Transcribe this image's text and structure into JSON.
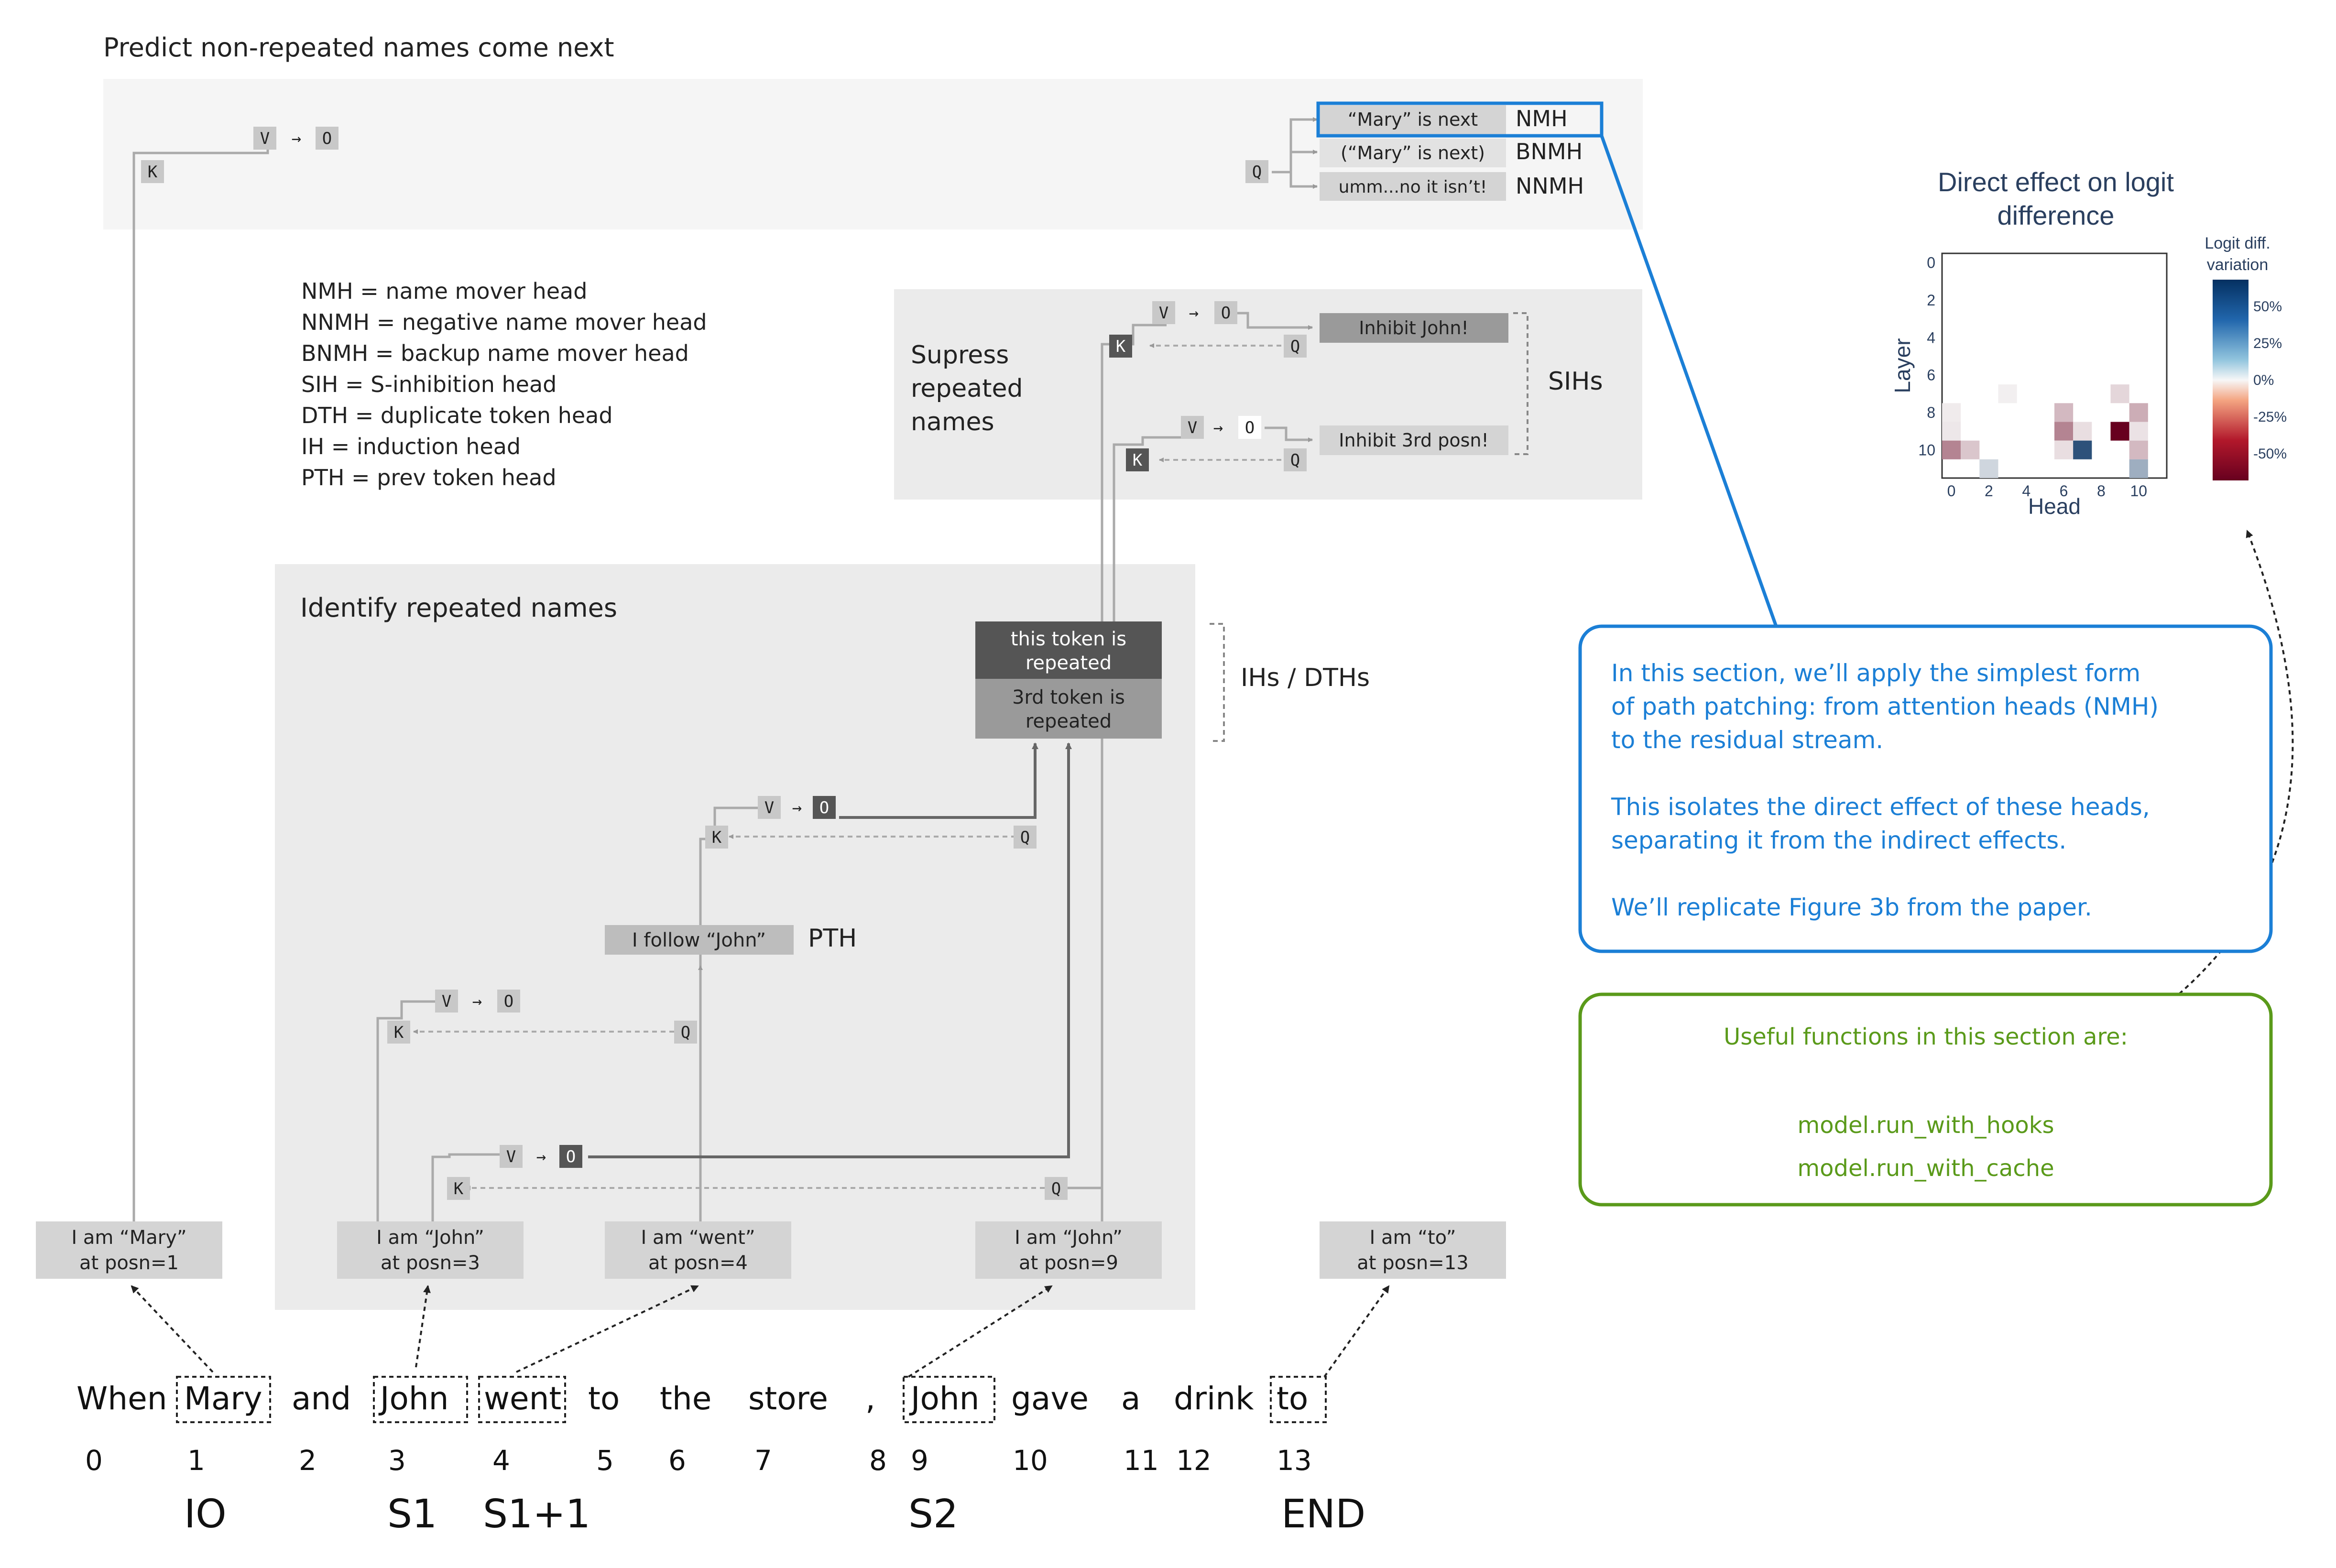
{
  "titles": {
    "predict": "Predict non-repeated names come next",
    "suppress": [
      "Supress",
      "repeated",
      "names"
    ],
    "identify": "Identify repeated names",
    "ih_dth": "IHs / DTHs",
    "sihs": "SIHs",
    "pth": "PTH"
  },
  "legend": [
    "NMH = name mover head",
    "NNMH = negative name mover head",
    "BNMH = backup name mover head",
    "SIH = S-inhibition head",
    "DTH = duplicate token head",
    "IH = induction head",
    "PTH = prev token head"
  ],
  "head_labels": {
    "k": "K",
    "q": "Q",
    "v": "V",
    "o": "O",
    "arrow": "→"
  },
  "outputs": [
    {
      "text": "“Mary” is next",
      "role": "NMH"
    },
    {
      "text": "(“Mary” is next)",
      "role": "BNMH"
    },
    {
      "text": "umm...no it isn’t!",
      "role": "NNMH"
    }
  ],
  "sih_outputs": [
    "Inhibit John!",
    "Inhibit 3rd posn!"
  ],
  "repeat_boxes": {
    "top": [
      "this token is",
      "repeated"
    ],
    "bottom": [
      "3rd token is",
      "repeated"
    ]
  },
  "pth_box": "I follow “John”",
  "token_boxes": [
    [
      "I am “Mary”",
      "at posn=1"
    ],
    [
      "I am “John”",
      "at posn=3"
    ],
    [
      "I am “went”",
      "at posn=4"
    ],
    [
      "I am “John”",
      "at posn=9"
    ],
    [
      "I am “to”",
      "at posn=13"
    ]
  ],
  "sentence": {
    "words": [
      "When",
      "Mary",
      "and",
      "John",
      "went",
      "to",
      "the",
      "store",
      ",",
      "John",
      "gave",
      "a",
      "drink",
      "to"
    ],
    "positions": [
      "0",
      "1",
      "2",
      "3",
      "4",
      "5",
      "6",
      "7",
      "8",
      "9",
      "10",
      "11",
      "12",
      "13"
    ],
    "roles": [
      "IO",
      "S1",
      "S1+1",
      "S2",
      "END"
    ]
  },
  "info_box": {
    "lines": [
      "In this section, we’ll apply the simplest form",
      "of path patching: from attention heads (NMH)",
      "to the residual stream.",
      "",
      "This isolates the direct effect of these heads,",
      "separating it from the indirect effects.",
      "",
      "We’ll replicate Figure 3b from the paper."
    ],
    "color": "#1b7fd6"
  },
  "functions_box": {
    "title": "Useful functions in this section are:",
    "items": [
      "model.run_with_hooks",
      "model.run_with_cache"
    ],
    "color": "#5a9a1a"
  },
  "chart_data": {
    "type": "heatmap",
    "title": [
      "Direct effect on logit",
      "difference"
    ],
    "xlabel": "Head",
    "ylabel": "Layer",
    "xticks": [
      "0",
      "2",
      "4",
      "6",
      "8",
      "10"
    ],
    "yticks": [
      "0",
      "2",
      "4",
      "6",
      "8",
      "10"
    ],
    "xlim": [
      0,
      11
    ],
    "ylim": [
      0,
      11
    ],
    "colorbar_title": [
      "Logit diff.",
      "variation"
    ],
    "colorbar_ticks": [
      "50%",
      "25%",
      "0%",
      "-25%",
      "-50%"
    ],
    "colorscale": {
      "min": -0.6,
      "max": 0.6,
      "neg": "#67001f",
      "zero": "#f7f7f7",
      "pos": "#053061"
    },
    "cells": [
      {
        "layer": 7,
        "head": 3,
        "value": -0.02
      },
      {
        "layer": 7,
        "head": 9,
        "value": -0.08
      },
      {
        "layer": 8,
        "head": 0,
        "value": -0.03
      },
      {
        "layer": 8,
        "head": 6,
        "value": -0.15
      },
      {
        "layer": 8,
        "head": 10,
        "value": -0.18
      },
      {
        "layer": 9,
        "head": 0,
        "value": -0.04
      },
      {
        "layer": 9,
        "head": 6,
        "value": -0.28
      },
      {
        "layer": 9,
        "head": 7,
        "value": -0.06
      },
      {
        "layer": 9,
        "head": 9,
        "value": -0.62
      },
      {
        "layer": 9,
        "head": 10,
        "value": -0.05
      },
      {
        "layer": 10,
        "head": 0,
        "value": -0.28
      },
      {
        "layer": 10,
        "head": 1,
        "value": -0.12
      },
      {
        "layer": 10,
        "head": 6,
        "value": -0.06
      },
      {
        "layer": 10,
        "head": 7,
        "value": 0.5
      },
      {
        "layer": 10,
        "head": 10,
        "value": -0.15
      },
      {
        "layer": 11,
        "head": 2,
        "value": 0.1
      },
      {
        "layer": 11,
        "head": 10,
        "value": 0.22
      }
    ]
  }
}
